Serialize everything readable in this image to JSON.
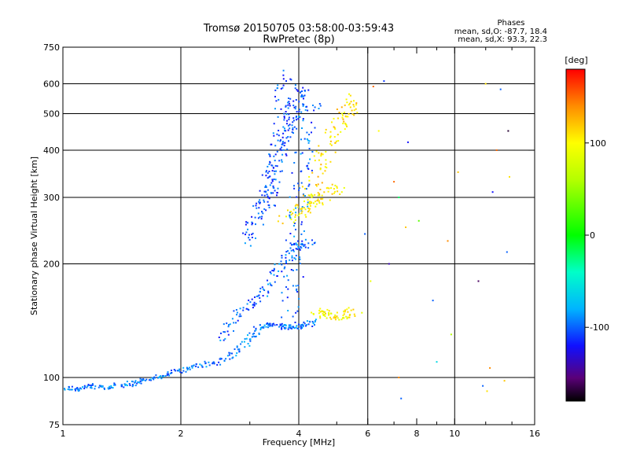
{
  "chart_data": {
    "type": "scatter",
    "title": "Tromsø 20150705 03:58:00-03:59:43",
    "subtitle": "RwPretec (8p)",
    "xlabel": "Frequency [MHz]",
    "ylabel": "Stationary phase Virtual Height [km]",
    "x_scale": "log",
    "y_scale": "log",
    "xlim": [
      1,
      16
    ],
    "ylim": [
      75,
      750
    ],
    "x_ticks": [
      1,
      2,
      4,
      6,
      8,
      10,
      16
    ],
    "x_tick_labels": [
      "1",
      "2",
      "4",
      "6",
      "8",
      "10",
      "16"
    ],
    "x_gridlines": [
      2,
      4,
      6,
      10
    ],
    "x_minor_ticks": [
      3,
      5,
      7,
      9,
      12,
      14
    ],
    "y_ticks": [
      75,
      100,
      200,
      300,
      400,
      500,
      600,
      750
    ],
    "y_tick_labels": [
      "75",
      "100",
      "200",
      "300",
      "400",
      "500",
      "600",
      "750"
    ],
    "y_gridlines": [
      100,
      200,
      300,
      400,
      500,
      600
    ],
    "grid": true,
    "phase_info": {
      "title": "Phases",
      "line_o": "mean, sd,O: -87.7, 18.4",
      "line_x": "mean, sd,X:  93.3, 22.3"
    },
    "colorbar": {
      "label": "[deg]",
      "range": [
        -180,
        180
      ],
      "ticks": [
        100,
        0,
        -100
      ],
      "tick_labels": [
        "100",
        "0",
        "-100"
      ],
      "stops": [
        {
          "v": -180,
          "color": "#000000"
        },
        {
          "v": -155,
          "color": "#5a0078"
        },
        {
          "v": -120,
          "color": "#1010ff"
        },
        {
          "v": -80,
          "color": "#00b4ff"
        },
        {
          "v": -40,
          "color": "#00ffc8"
        },
        {
          "v": 0,
          "color": "#00ff00"
        },
        {
          "v": 60,
          "color": "#b4ff00"
        },
        {
          "v": 100,
          "color": "#ffff00"
        },
        {
          "v": 140,
          "color": "#ff8c00"
        },
        {
          "v": 180,
          "color": "#ff0000"
        }
      ]
    },
    "traces": [
      {
        "name": "",
        "phase": -95,
        "jitter": 3,
        "points": [
          [
            1.0,
            94
          ],
          [
            1.08,
            93
          ],
          [
            1.15,
            95
          ],
          [
            1.25,
            94
          ],
          [
            1.35,
            95
          ],
          [
            1.45,
            96
          ],
          [
            1.55,
            97
          ],
          [
            1.65,
            99
          ],
          [
            1.8,
            101
          ],
          [
            1.95,
            104
          ],
          [
            2.1,
            106
          ],
          [
            2.3,
            108
          ],
          [
            2.5,
            110
          ],
          [
            2.7,
            115
          ],
          [
            2.9,
            122
          ],
          [
            3.05,
            130
          ],
          [
            3.2,
            137
          ],
          [
            3.4,
            138
          ],
          [
            3.6,
            137
          ],
          [
            3.8,
            136
          ],
          [
            4.0,
            136
          ],
          [
            4.2,
            138
          ],
          [
            4.4,
            141
          ]
        ]
      },
      {
        "name": "",
        "phase": -100,
        "jitter": 4,
        "points": [
          [
            2.5,
            125
          ],
          [
            2.7,
            140
          ],
          [
            2.9,
            152
          ],
          [
            3.1,
            160
          ],
          [
            3.3,
            170
          ],
          [
            3.5,
            190
          ],
          [
            3.7,
            205
          ],
          [
            3.9,
            220
          ],
          [
            4.1,
            225
          ],
          [
            4.3,
            228
          ]
        ]
      },
      {
        "name": "",
        "phase": -105,
        "jitter": 5,
        "points": [
          [
            2.95,
            228
          ],
          [
            3.05,
            250
          ],
          [
            3.15,
            270
          ],
          [
            3.25,
            290
          ],
          [
            3.35,
            320
          ],
          [
            3.45,
            360
          ],
          [
            3.55,
            420
          ],
          [
            3.6,
            480
          ],
          [
            3.65,
            560
          ],
          [
            3.7,
            650
          ]
        ]
      },
      {
        "name": "",
        "phase": -105,
        "jitter": 5,
        "points": [
          [
            3.3,
            280
          ],
          [
            3.4,
            320
          ],
          [
            3.5,
            360
          ],
          [
            3.6,
            400
          ],
          [
            3.7,
            440
          ],
          [
            3.8,
            480
          ],
          [
            3.9,
            520
          ],
          [
            4.0,
            560
          ],
          [
            4.1,
            600
          ]
        ]
      },
      {
        "name": "",
        "phase": -100,
        "jitter": 6,
        "points": [
          [
            3.8,
            140
          ],
          [
            3.85,
            170
          ],
          [
            3.9,
            200
          ],
          [
            3.95,
            240
          ],
          [
            4.0,
            280
          ],
          [
            4.05,
            320
          ],
          [
            4.1,
            380
          ],
          [
            4.15,
            440
          ],
          [
            4.2,
            500
          ],
          [
            4.3,
            540
          ]
        ]
      },
      {
        "name": "",
        "phase": 110,
        "jitter": 6,
        "points": [
          [
            4.2,
            300
          ],
          [
            4.4,
            340
          ],
          [
            4.6,
            380
          ],
          [
            4.8,
            420
          ],
          [
            5.0,
            460
          ],
          [
            5.2,
            490
          ],
          [
            5.4,
            520
          ],
          [
            5.6,
            550
          ]
        ]
      },
      {
        "name": "",
        "phase": 105,
        "jitter": 6,
        "points": [
          [
            3.7,
            260
          ],
          [
            3.9,
            270
          ],
          [
            4.1,
            280
          ],
          [
            4.3,
            290
          ],
          [
            4.5,
            300
          ],
          [
            4.8,
            310
          ],
          [
            5.2,
            320
          ]
        ]
      },
      {
        "name": "",
        "phase": 100,
        "jitter": 5,
        "points": [
          [
            4.4,
            150
          ],
          [
            4.6,
            148
          ],
          [
            4.8,
            146
          ],
          [
            5.0,
            145
          ],
          [
            5.3,
            147
          ],
          [
            5.6,
            150
          ]
        ]
      }
    ],
    "scattered_points": [
      [
        6.2,
        590,
        150
      ],
      [
        6.6,
        610,
        -110
      ],
      [
        7.0,
        330,
        150
      ],
      [
        7.2,
        300,
        -20
      ],
      [
        7.5,
        250,
        120
      ],
      [
        6.8,
        200,
        -140
      ],
      [
        7.2,
        100,
        140
      ],
      [
        7.3,
        88,
        -100
      ],
      [
        8.8,
        160,
        -100
      ],
      [
        9.0,
        110,
        -60
      ],
      [
        9.8,
        130,
        60
      ],
      [
        9.6,
        230,
        140
      ],
      [
        11.5,
        180,
        -160
      ],
      [
        12.0,
        600,
        110
      ],
      [
        12.5,
        310,
        -120
      ],
      [
        12.8,
        400,
        150
      ],
      [
        13.1,
        580,
        -100
      ],
      [
        13.6,
        215,
        -100
      ],
      [
        13.8,
        340,
        110
      ],
      [
        11.8,
        95,
        -100
      ],
      [
        12.3,
        106,
        140
      ],
      [
        13.4,
        98,
        120
      ],
      [
        6.1,
        180,
        90
      ],
      [
        6.4,
        450,
        100
      ],
      [
        5.9,
        240,
        -100
      ],
      [
        7.6,
        420,
        -120
      ],
      [
        8.1,
        260,
        30
      ],
      [
        10.2,
        350,
        120
      ],
      [
        12.1,
        92,
        110
      ],
      [
        13.7,
        450,
        -170
      ]
    ]
  }
}
